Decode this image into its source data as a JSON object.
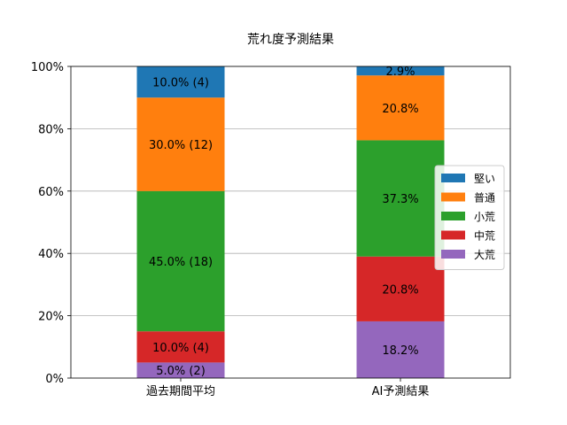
{
  "chart_data": {
    "type": "bar",
    "stacked": true,
    "title": "荒れ度予測結果",
    "xlabel": "",
    "ylabel": "",
    "ylim": [
      0,
      100
    ],
    "y_ticks": [
      "0%",
      "20%",
      "40%",
      "60%",
      "80%",
      "100%"
    ],
    "grid": "y",
    "legend_position": "center-right",
    "categories": [
      "過去期間平均",
      "AI予測結果"
    ],
    "series": [
      {
        "name": "大荒",
        "color": "#9467bd",
        "values": [
          5.0,
          18.2
        ],
        "labels": [
          "5.0% (2)",
          "18.2%"
        ]
      },
      {
        "name": "中荒",
        "color": "#d62728",
        "values": [
          10.0,
          20.8
        ],
        "labels": [
          "10.0% (4)",
          "20.8%"
        ]
      },
      {
        "name": "小荒",
        "color": "#2ca02c",
        "values": [
          45.0,
          37.3
        ],
        "labels": [
          "45.0% (18)",
          "37.3%"
        ]
      },
      {
        "name": "普通",
        "color": "#ff7f0e",
        "values": [
          30.0,
          20.8
        ],
        "labels": [
          "30.0% (12)",
          "20.8%"
        ]
      },
      {
        "name": "堅い",
        "color": "#1f77b4",
        "values": [
          10.0,
          2.9
        ],
        "labels": [
          "10.0% (4)",
          "2.9%"
        ]
      }
    ],
    "legend_order": [
      "堅い",
      "普通",
      "小荒",
      "中荒",
      "大荒"
    ]
  }
}
